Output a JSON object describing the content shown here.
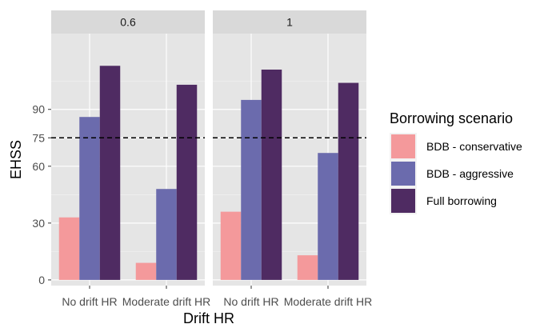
{
  "chart_data": {
    "type": "bar",
    "xlabel": "Drift HR",
    "ylabel": "EHSS",
    "ylim": [
      -3,
      130
    ],
    "yticks": [
      0,
      30,
      60,
      75,
      90
    ],
    "reference_line": {
      "y": 75,
      "style": "dashed"
    },
    "categories": [
      "No drift HR",
      "Moderate drift HR"
    ],
    "legend": {
      "title": "Borrowing scenario",
      "placement": "right"
    },
    "panels": [
      {
        "strip": "0.6",
        "series": [
          {
            "name": "BDB - conservative",
            "color": "#F4999B",
            "values": [
              33,
              9
            ]
          },
          {
            "name": "BDB - aggressive",
            "color": "#6B6BAD",
            "values": [
              86,
              48
            ]
          },
          {
            "name": "Full borrowing",
            "color": "#4F2B62",
            "values": [
              113,
              103
            ]
          }
        ]
      },
      {
        "strip": "1",
        "series": [
          {
            "name": "BDB - conservative",
            "color": "#F4999B",
            "values": [
              36,
              13
            ]
          },
          {
            "name": "BDB - aggressive",
            "color": "#6B6BAD",
            "values": [
              95,
              67
            ]
          },
          {
            "name": "Full borrowing",
            "color": "#4F2B62",
            "values": [
              111,
              104
            ]
          }
        ]
      }
    ]
  },
  "colors": {
    "panel_background": "#E5E5E5",
    "strip_background": "#D9D9D9",
    "grid_major": "#FFFFFF"
  }
}
